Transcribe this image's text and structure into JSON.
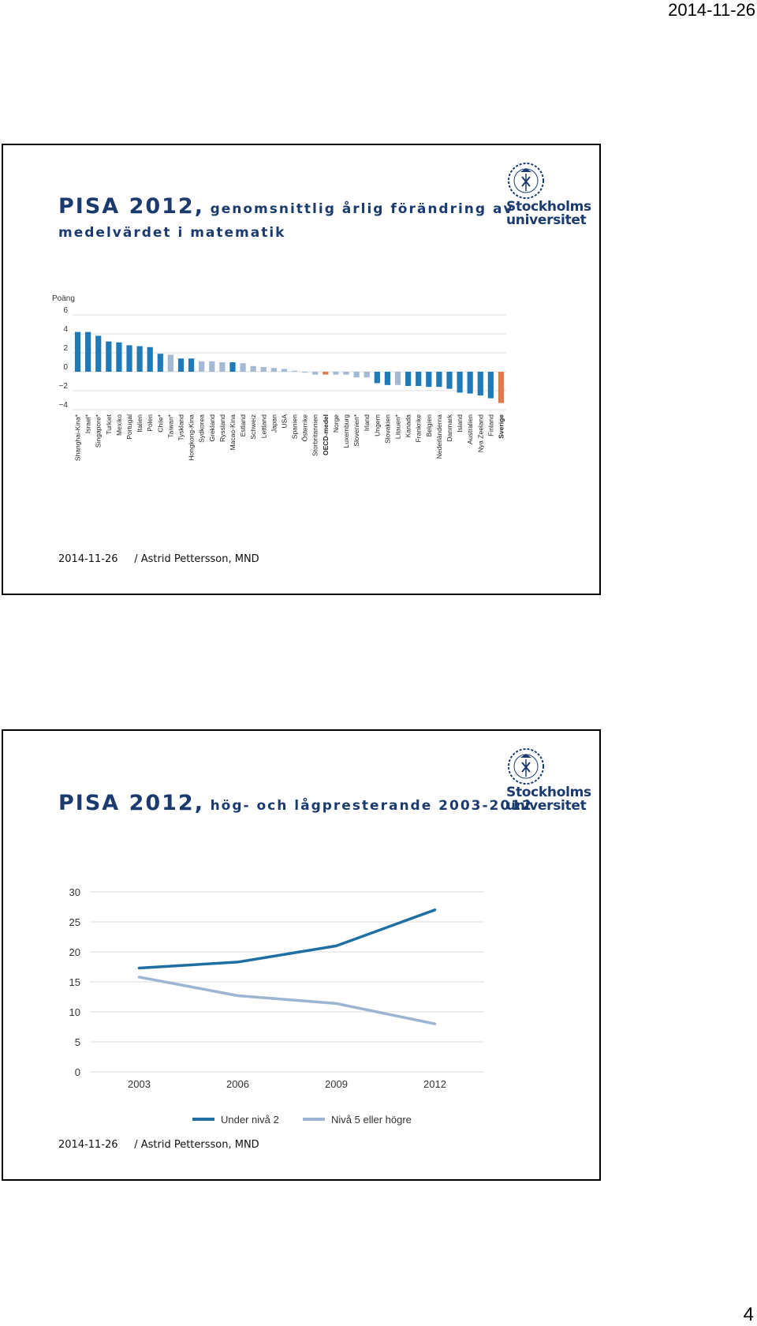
{
  "page": {
    "date": "2014-11-26",
    "number": "4"
  },
  "slide1": {
    "title_prefix": "PISA 2012,",
    "title_rest": "genomsnittlig årlig förändring av",
    "title_line2": "medelvärdet i matematik",
    "logo_line1": "Stockholms",
    "logo_line2": "universitet",
    "footer": "2014-11-26     / Astrid Pettersson, MND",
    "chart_data": {
      "type": "bar",
      "ylabel": "Poäng",
      "ylim": [
        -4,
        6
      ],
      "yticks": [
        "6",
        "4",
        "2",
        "0",
        "−2",
        "−4"
      ],
      "categories": [
        "Shanghai-Kina*",
        "Israel*",
        "Singapore*",
        "Turkiet",
        "Mexiko",
        "Portugal",
        "Italien",
        "Polen",
        "Chile*",
        "Taiwan*",
        "Tyskland",
        "Hongkong-Kina",
        "Sydkorea",
        "Grekland",
        "Ryssland",
        "Macao-Kina",
        "Estland",
        "Schweiz",
        "Lettland",
        "Japan",
        "USA",
        "Spanien",
        "Österrike",
        "Storbritannien",
        "OECD-medel",
        "Norge",
        "Luxemburg",
        "Slovenien*",
        "Irland",
        "Ungern",
        "Slovakien",
        "Litauen*",
        "Kanada",
        "Frankrike",
        "Belgien",
        "Nederländerna",
        "Danmark",
        "Island",
        "Australien",
        "Nya Zeeland",
        "Finland",
        "Sverige"
      ],
      "values": [
        4.2,
        4.2,
        3.8,
        3.2,
        3.1,
        2.8,
        2.7,
        2.6,
        1.9,
        1.8,
        1.4,
        1.4,
        1.1,
        1.1,
        1.0,
        1.0,
        0.9,
        0.6,
        0.5,
        0.4,
        0.3,
        0.1,
        -0.1,
        -0.3,
        -0.3,
        -0.3,
        -0.3,
        -0.6,
        -0.6,
        -1.2,
        -1.4,
        -1.4,
        -1.5,
        -1.5,
        -1.6,
        -1.6,
        -1.8,
        -2.2,
        -2.3,
        -2.5,
        -2.8,
        -3.3
      ],
      "bar_kinds": [
        "sig",
        "sig",
        "sig",
        "sig",
        "sig",
        "sig",
        "sig",
        "sig",
        "sig",
        "ns",
        "sig",
        "sig",
        "ns",
        "ns",
        "ns",
        "sig",
        "ns",
        "ns",
        "ns",
        "ns",
        "ns",
        "ns",
        "ns",
        "ns",
        "oecd",
        "ns",
        "ns",
        "ns",
        "ns",
        "sig",
        "sig",
        "ns",
        "sig",
        "sig",
        "sig",
        "sig",
        "sig",
        "sig",
        "sig",
        "sig",
        "sig",
        "swe"
      ],
      "colors": {
        "sig": "#1f7bb8",
        "ns": "#a3b9d4",
        "oecd": "#e07b4f",
        "swe": "#e07b4f",
        "grid": "#dcdcdc"
      },
      "bold_labels": [
        "OECD-medel",
        "Sverige"
      ]
    }
  },
  "slide2": {
    "title_prefix": "PISA 2012,",
    "title_rest": "hög- och lågpresterande 2003-2012",
    "logo_line1": "Stockholms",
    "logo_line2": "universitet",
    "footer": "2014-11-26     / Astrid Pettersson, MND",
    "chart_data": {
      "type": "line",
      "x": [
        "2003",
        "2006",
        "2009",
        "2012"
      ],
      "ylim": [
        0,
        30
      ],
      "yticks": [
        "30",
        "25",
        "20",
        "15",
        "10",
        "5",
        "0"
      ],
      "series": [
        {
          "name": "Under nivå 2",
          "values": [
            17.3,
            18.3,
            21.0,
            27.0
          ],
          "color": "#1f6fa3"
        },
        {
          "name": "Nivå 5 eller högre",
          "values": [
            15.8,
            12.7,
            11.4,
            8.0
          ],
          "color": "#9db4d2"
        }
      ],
      "legend": "bottom"
    }
  }
}
